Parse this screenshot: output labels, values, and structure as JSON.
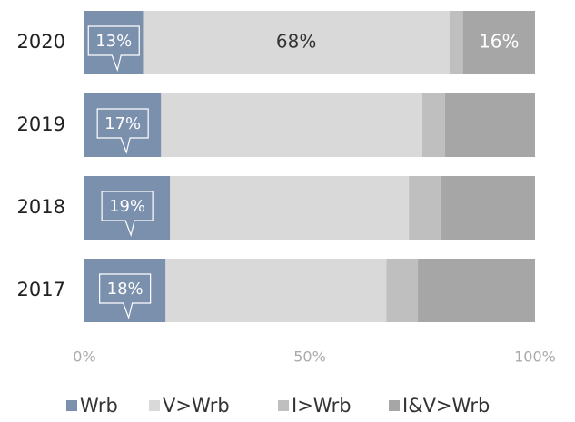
{
  "chart_data": {
    "type": "stacked-barh",
    "categories": [
      "2020",
      "2019",
      "2018",
      "2017"
    ],
    "series": [
      {
        "name": "Wrb",
        "color": "#7a90ad",
        "values": [
          13,
          17,
          19,
          18
        ],
        "value_labels": [
          "13%",
          "17%",
          "19%",
          "18%"
        ],
        "label_color": "#ffffff"
      },
      {
        "name": "V>Wrb",
        "color": "#d9d9d9",
        "values": [
          68,
          58,
          53,
          49
        ],
        "value_labels": [
          "68%",
          null,
          null,
          null
        ],
        "label_color": "#333333"
      },
      {
        "name": "I>Wrb",
        "color": "#bfbfbf",
        "values": [
          3,
          5,
          7,
          7
        ],
        "label_color": "#333333"
      },
      {
        "name": "I&V>Wrb",
        "color": "#a6a6a6",
        "values": [
          16,
          20,
          21,
          26
        ],
        "value_labels": [
          "16%",
          null,
          null,
          null
        ],
        "label_color": "#ffffff"
      }
    ],
    "xlim": [
      0,
      100
    ],
    "xticks": [
      {
        "value": 0,
        "label": "0%"
      },
      {
        "value": 50,
        "label": "50%"
      },
      {
        "value": 100,
        "label": "100%"
      }
    ],
    "legend": "bottom"
  }
}
